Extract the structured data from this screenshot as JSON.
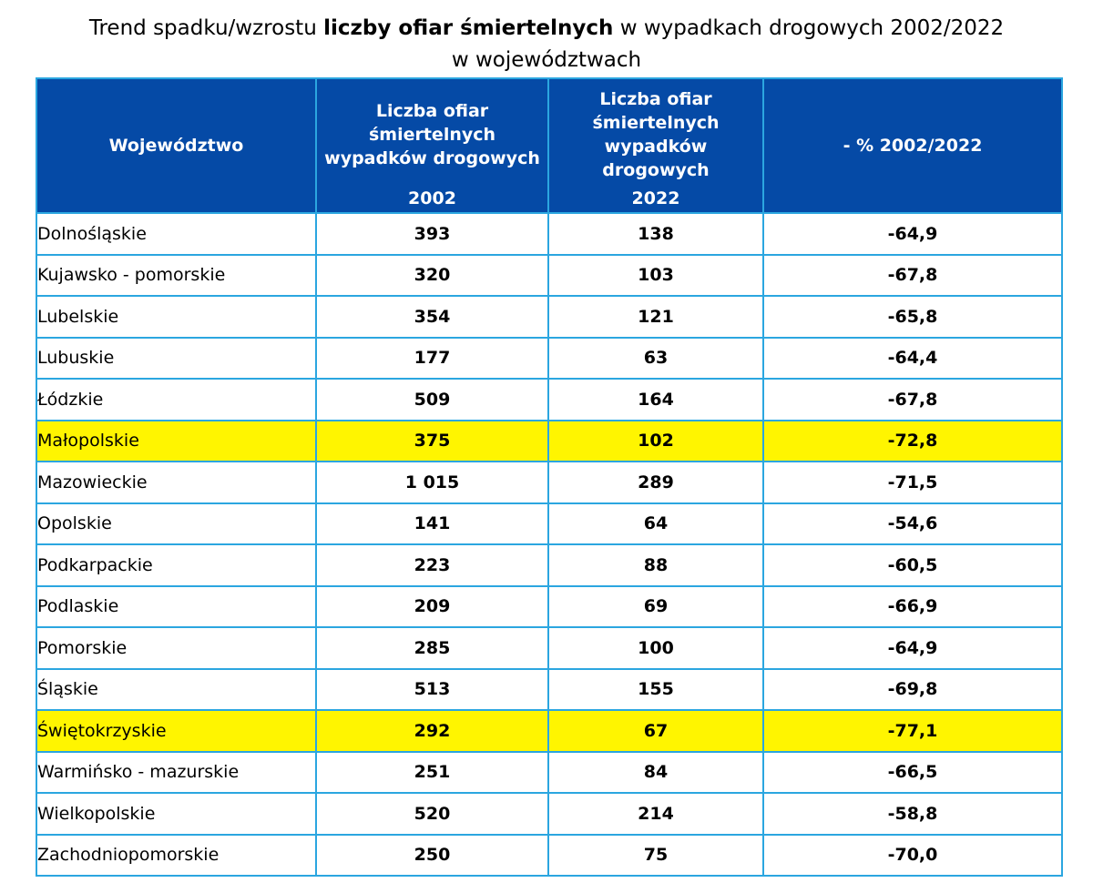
{
  "title": {
    "pre": "Trend spadku/wzrostu ",
    "bold": "liczby ofiar śmiertelnych",
    "post": " w wypadkach drogowych 2002/2022",
    "line2": "w województwach"
  },
  "colors": {
    "header_bg": "#054aa6",
    "border": "#2ba6e0",
    "highlight": "#fff500"
  },
  "chart_data": {
    "type": "table",
    "columns": [
      "Województwo",
      "Liczba ofiar śmiertelnych wypadków drogowych 2002",
      "Liczba ofiar śmiertelnych wypadków drogowych 2022",
      "- % 2002/2022"
    ],
    "header": {
      "region": "Województwo",
      "count_label": "Liczba ofiar śmiertelnych wypadków drogowych",
      "year_a": "2002",
      "year_b": "2022",
      "change": "- % 2002/2022"
    },
    "rows": [
      {
        "region": "Dolnośląskie",
        "v2002": "393",
        "v2022": "138",
        "change": "-64,9",
        "highlight": false
      },
      {
        "region": "Kujawsko - pomorskie",
        "v2002": "320",
        "v2022": "103",
        "change": "-67,8",
        "highlight": false
      },
      {
        "region": "Lubelskie",
        "v2002": "354",
        "v2022": "121",
        "change": "-65,8",
        "highlight": false
      },
      {
        "region": "Lubuskie",
        "v2002": "177",
        "v2022": "63",
        "change": "-64,4",
        "highlight": false
      },
      {
        "region": "Łódzkie",
        "v2002": "509",
        "v2022": "164",
        "change": "-67,8",
        "highlight": false
      },
      {
        "region": "Małopolskie",
        "v2002": "375",
        "v2022": "102",
        "change": "-72,8",
        "highlight": true
      },
      {
        "region": "Mazowieckie",
        "v2002": "1 015",
        "v2022": "289",
        "change": "-71,5",
        "highlight": false
      },
      {
        "region": "Opolskie",
        "v2002": "141",
        "v2022": "64",
        "change": "-54,6",
        "highlight": false
      },
      {
        "region": "Podkarpackie",
        "v2002": "223",
        "v2022": "88",
        "change": "-60,5",
        "highlight": false
      },
      {
        "region": "Podlaskie",
        "v2002": "209",
        "v2022": "69",
        "change": "-66,9",
        "highlight": false
      },
      {
        "region": "Pomorskie",
        "v2002": "285",
        "v2022": "100",
        "change": "-64,9",
        "highlight": false
      },
      {
        "region": "Śląskie",
        "v2002": "513",
        "v2022": "155",
        "change": "-69,8",
        "highlight": false
      },
      {
        "region": "Świętokrzyskie",
        "v2002": "292",
        "v2022": "67",
        "change": "-77,1",
        "highlight": true
      },
      {
        "region": "Warmińsko - mazurskie",
        "v2002": "251",
        "v2022": "84",
        "change": "-66,5",
        "highlight": false
      },
      {
        "region": "Wielkopolskie",
        "v2002": "520",
        "v2022": "214",
        "change": "-58,8",
        "highlight": false
      },
      {
        "region": "Zachodniopomorskie",
        "v2002": "250",
        "v2022": "75",
        "change": "-70,0",
        "highlight": false
      }
    ]
  }
}
